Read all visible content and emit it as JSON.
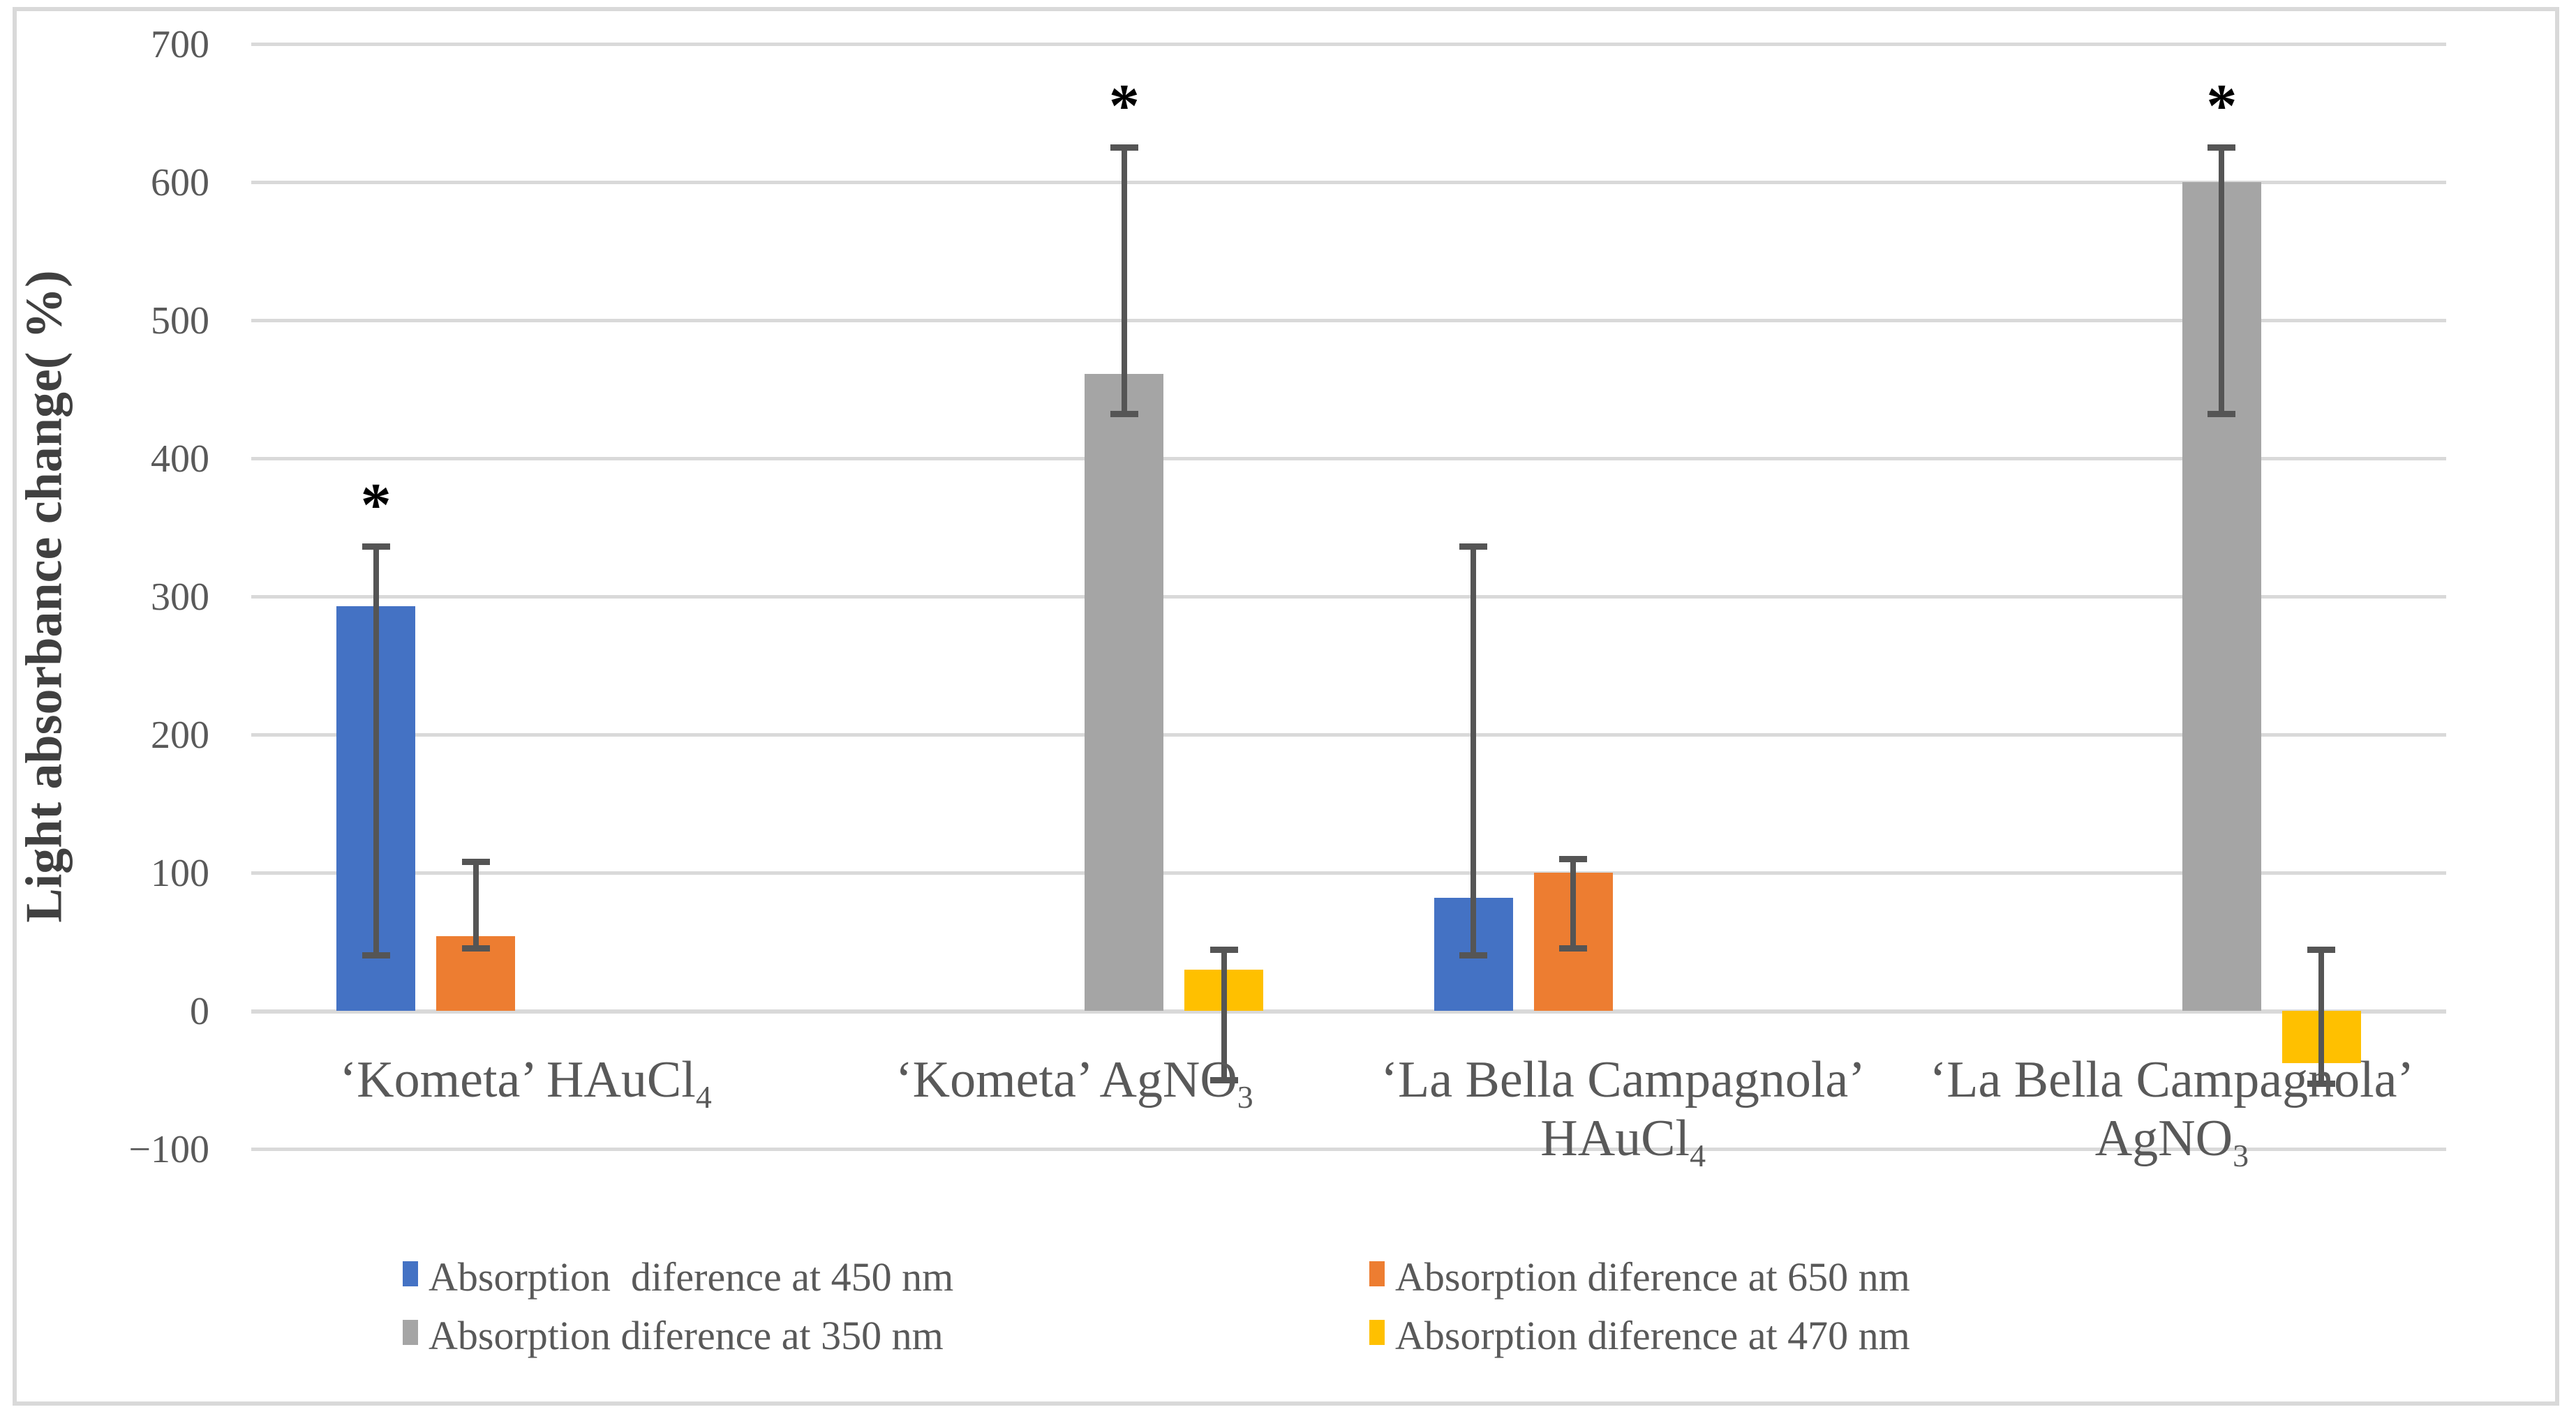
{
  "figure": {
    "background": "#FFFFFF",
    "border_color": "#D9D9D9"
  },
  "chart_data": {
    "type": "bar",
    "title": "",
    "ylabel": "Light absorbance change( %)",
    "ylim": [
      -100,
      700
    ],
    "yticks": [
      700,
      600,
      500,
      400,
      300,
      200,
      100,
      0,
      -100
    ],
    "grid": true,
    "legend_position": "bottom",
    "gridline_color": "#D9D9D9",
    "error_bar_color": "#555555",
    "text_color": "#595959",
    "category_names": [
      "‘Kometa’ HAuCl4",
      "‘Kometa’ AgNO3",
      "‘La Bella Campagnola’ HAuCl4",
      "‘La Bella Campagnola’ AgNO3"
    ],
    "categories": [
      {
        "lines": [
          [
            {
              "t": "‘Kometa’ HAuCl"
            },
            {
              "t": "4",
              "sub": true
            }
          ]
        ]
      },
      {
        "lines": [
          [
            {
              "t": "‘Kometa’ AgNO"
            },
            {
              "t": "3",
              "sub": true
            }
          ]
        ]
      },
      {
        "lines": [
          [
            {
              "t": "‘La Bella Campagnola’"
            }
          ],
          [
            {
              "t": "HAuCl"
            },
            {
              "t": "4",
              "sub": true
            }
          ]
        ]
      },
      {
        "lines": [
          [
            {
              "t": "‘La Bella Campagnola’"
            }
          ],
          [
            {
              "t": "AgNO"
            },
            {
              "t": "3",
              "sub": true
            }
          ]
        ]
      }
    ],
    "series": [
      {
        "key": "450nm",
        "name": "Absorption  diference at 450 nm",
        "color": "#4472C4",
        "values": [
          293,
          null,
          82,
          null
        ],
        "err_low": [
          40,
          null,
          40,
          null
        ],
        "err_high": [
          336,
          null,
          336,
          null
        ]
      },
      {
        "key": "650nm",
        "name": "Absorption diference at 650 nm",
        "color": "#ED7D31",
        "values": [
          54,
          null,
          100,
          null
        ],
        "err_low": [
          45,
          null,
          45,
          null
        ],
        "err_high": [
          108,
          null,
          110,
          null
        ]
      },
      {
        "key": "350nm",
        "name": "Absorption diference at 350 nm",
        "color": "#A5A5A5",
        "values": [
          null,
          461,
          null,
          600
        ],
        "err_low": [
          null,
          432,
          null,
          432
        ],
        "err_high": [
          null,
          625,
          null,
          625
        ]
      },
      {
        "key": "470nm",
        "name": "Absorption diference at 470 nm",
        "color": "#FFC000",
        "values": [
          null,
          30,
          null,
          -38
        ],
        "err_low": [
          null,
          -50,
          null,
          -53
        ],
        "err_high": [
          null,
          44,
          null,
          44
        ]
      }
    ],
    "significance_markers": [
      {
        "symbol": "*",
        "category": 0,
        "series": 0
      },
      {
        "symbol": "*",
        "category": 1,
        "series": 2
      },
      {
        "symbol": "*",
        "category": 3,
        "series": 2
      }
    ]
  }
}
